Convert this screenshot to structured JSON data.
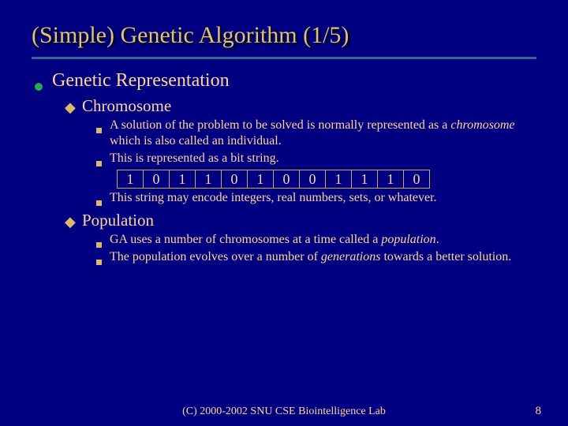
{
  "title": "(Simple) Genetic Algorithm (1/5)",
  "lvl1": {
    "text": "Genetic Representation"
  },
  "lvl2a": {
    "text": "Chromosome"
  },
  "lvl3a": {
    "pre": "A solution of the problem to be solved is normally represented as a ",
    "em": "chromosome",
    "post": " which is also called an individual."
  },
  "lvl3b": {
    "text": "This is represented as a bit string."
  },
  "bits": [
    "1",
    "0",
    "1",
    "1",
    "0",
    "1",
    "0",
    "0",
    "1",
    "1",
    "1",
    "0"
  ],
  "lvl3c": {
    "text": "This string may encode integers, real numbers, sets, or whatever."
  },
  "lvl2b": {
    "text": "Population"
  },
  "lvl3d": {
    "pre": "GA uses a number of chromosomes at a time called a ",
    "em": "population",
    "post": "."
  },
  "lvl3e": {
    "pre": "The population evolves over a number of ",
    "em": "generations",
    "post": " towards a better solution."
  },
  "footer": "(C) 2000-2002 SNU CSE Biointelligence Lab",
  "page": "8",
  "colors": {
    "background": "#000080",
    "accent": "#336699",
    "bullet_green": "#2aa84a",
    "text": "#ffd699",
    "border": "#c9aa55"
  }
}
